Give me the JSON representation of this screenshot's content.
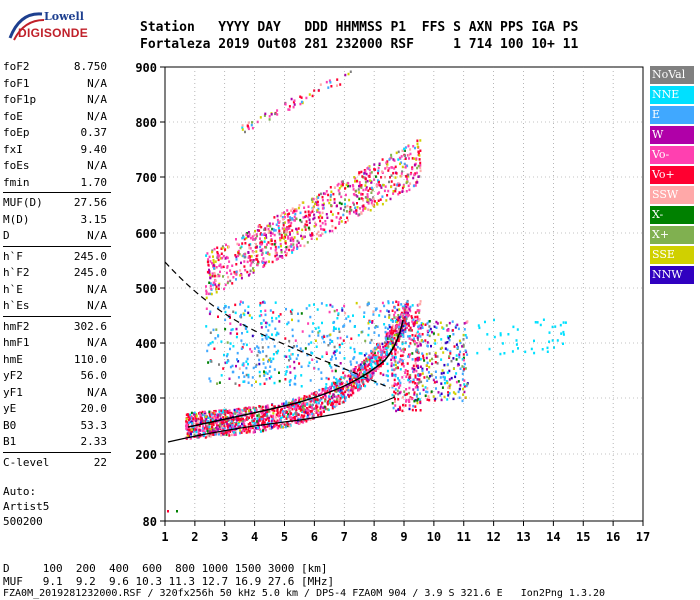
{
  "logo": {
    "line1": "Lowell",
    "line2": "DIGISONDE"
  },
  "header": {
    "line1": "Station   YYYY DAY   DDD HHMMSS P1  FFS S AXN PPS IGA PS",
    "line2": "Fortaleza 2019 Out08 281 232000 RSF     1 714 100 10+ 11"
  },
  "params": [
    {
      "name": "foF2",
      "value": "8.750"
    },
    {
      "name": "foF1",
      "value": "N/A"
    },
    {
      "name": "foF1p",
      "value": "N/A"
    },
    {
      "name": "foE",
      "value": "N/A"
    },
    {
      "name": "foEp",
      "value": "0.37"
    },
    {
      "name": "fxI",
      "value": "9.40"
    },
    {
      "name": "foEs",
      "value": "N/A"
    },
    {
      "name": "fmin",
      "value": "1.70"
    },
    {
      "name": "MUF(D)",
      "value": "27.56"
    },
    {
      "name": "M(D)",
      "value": "3.15"
    },
    {
      "name": "D",
      "value": "N/A"
    },
    {
      "name": "h`F",
      "value": "245.0"
    },
    {
      "name": "h`F2",
      "value": "245.0"
    },
    {
      "name": "h`E",
      "value": "N/A"
    },
    {
      "name": "h`Es",
      "value": "N/A"
    },
    {
      "name": "hmF2",
      "value": "302.6"
    },
    {
      "name": "hmF1",
      "value": "N/A"
    },
    {
      "name": "hmE",
      "value": "110.0"
    },
    {
      "name": "yF2",
      "value": "56.0"
    },
    {
      "name": "yF1",
      "value": "N/A"
    },
    {
      "name": "yE",
      "value": "20.0"
    },
    {
      "name": "B0",
      "value": "53.3"
    },
    {
      "name": "B1",
      "value": "2.33"
    },
    {
      "name": "C-level",
      "value": "22"
    }
  ],
  "auto": {
    "line1": "Auto:",
    "line2": "Artist5",
    "line3": "500200"
  },
  "legend": [
    {
      "label": "NoVal",
      "color": "#808080"
    },
    {
      "label": "NNE",
      "color": "#00e0ff"
    },
    {
      "label": "E",
      "color": "#40a8ff"
    },
    {
      "label": "W",
      "color": "#b000a8"
    },
    {
      "label": "Vo-",
      "color": "#ff40b0"
    },
    {
      "label": "Vo+",
      "color": "#ff0030"
    },
    {
      "label": "SSW",
      "color": "#ffa8a8"
    },
    {
      "label": "X-",
      "color": "#008000"
    },
    {
      "label": "X+",
      "color": "#80b050"
    },
    {
      "label": "SSE",
      "color": "#d0d000"
    },
    {
      "label": "NNW",
      "color": "#3000c0"
    }
  ],
  "axes": {
    "x_ticks": [
      "1",
      "2",
      "3",
      "4",
      "5",
      "6",
      "7",
      "8",
      "9",
      "10",
      "11",
      "12",
      "13",
      "14",
      "15",
      "16",
      "17"
    ],
    "y_ticks": [
      "900",
      "800",
      "700",
      "600",
      "500",
      "400",
      "300",
      "200",
      "80"
    ]
  },
  "bottom": {
    "line1": "D     100  200  400  600  800 1000 1500 3000 [km]",
    "line2": "MUF   9.1  9.2  9.6 10.3 11.3 12.7 16.9 27.6 [MHz]",
    "line3": "FZA0M_2019281232000.RSF / 320fx256h 50 kHz 5.0 km / DPS-4 FZA0M 904 / 3.9 S 321.6 E   Ion2Png 1.3.20"
  }
}
